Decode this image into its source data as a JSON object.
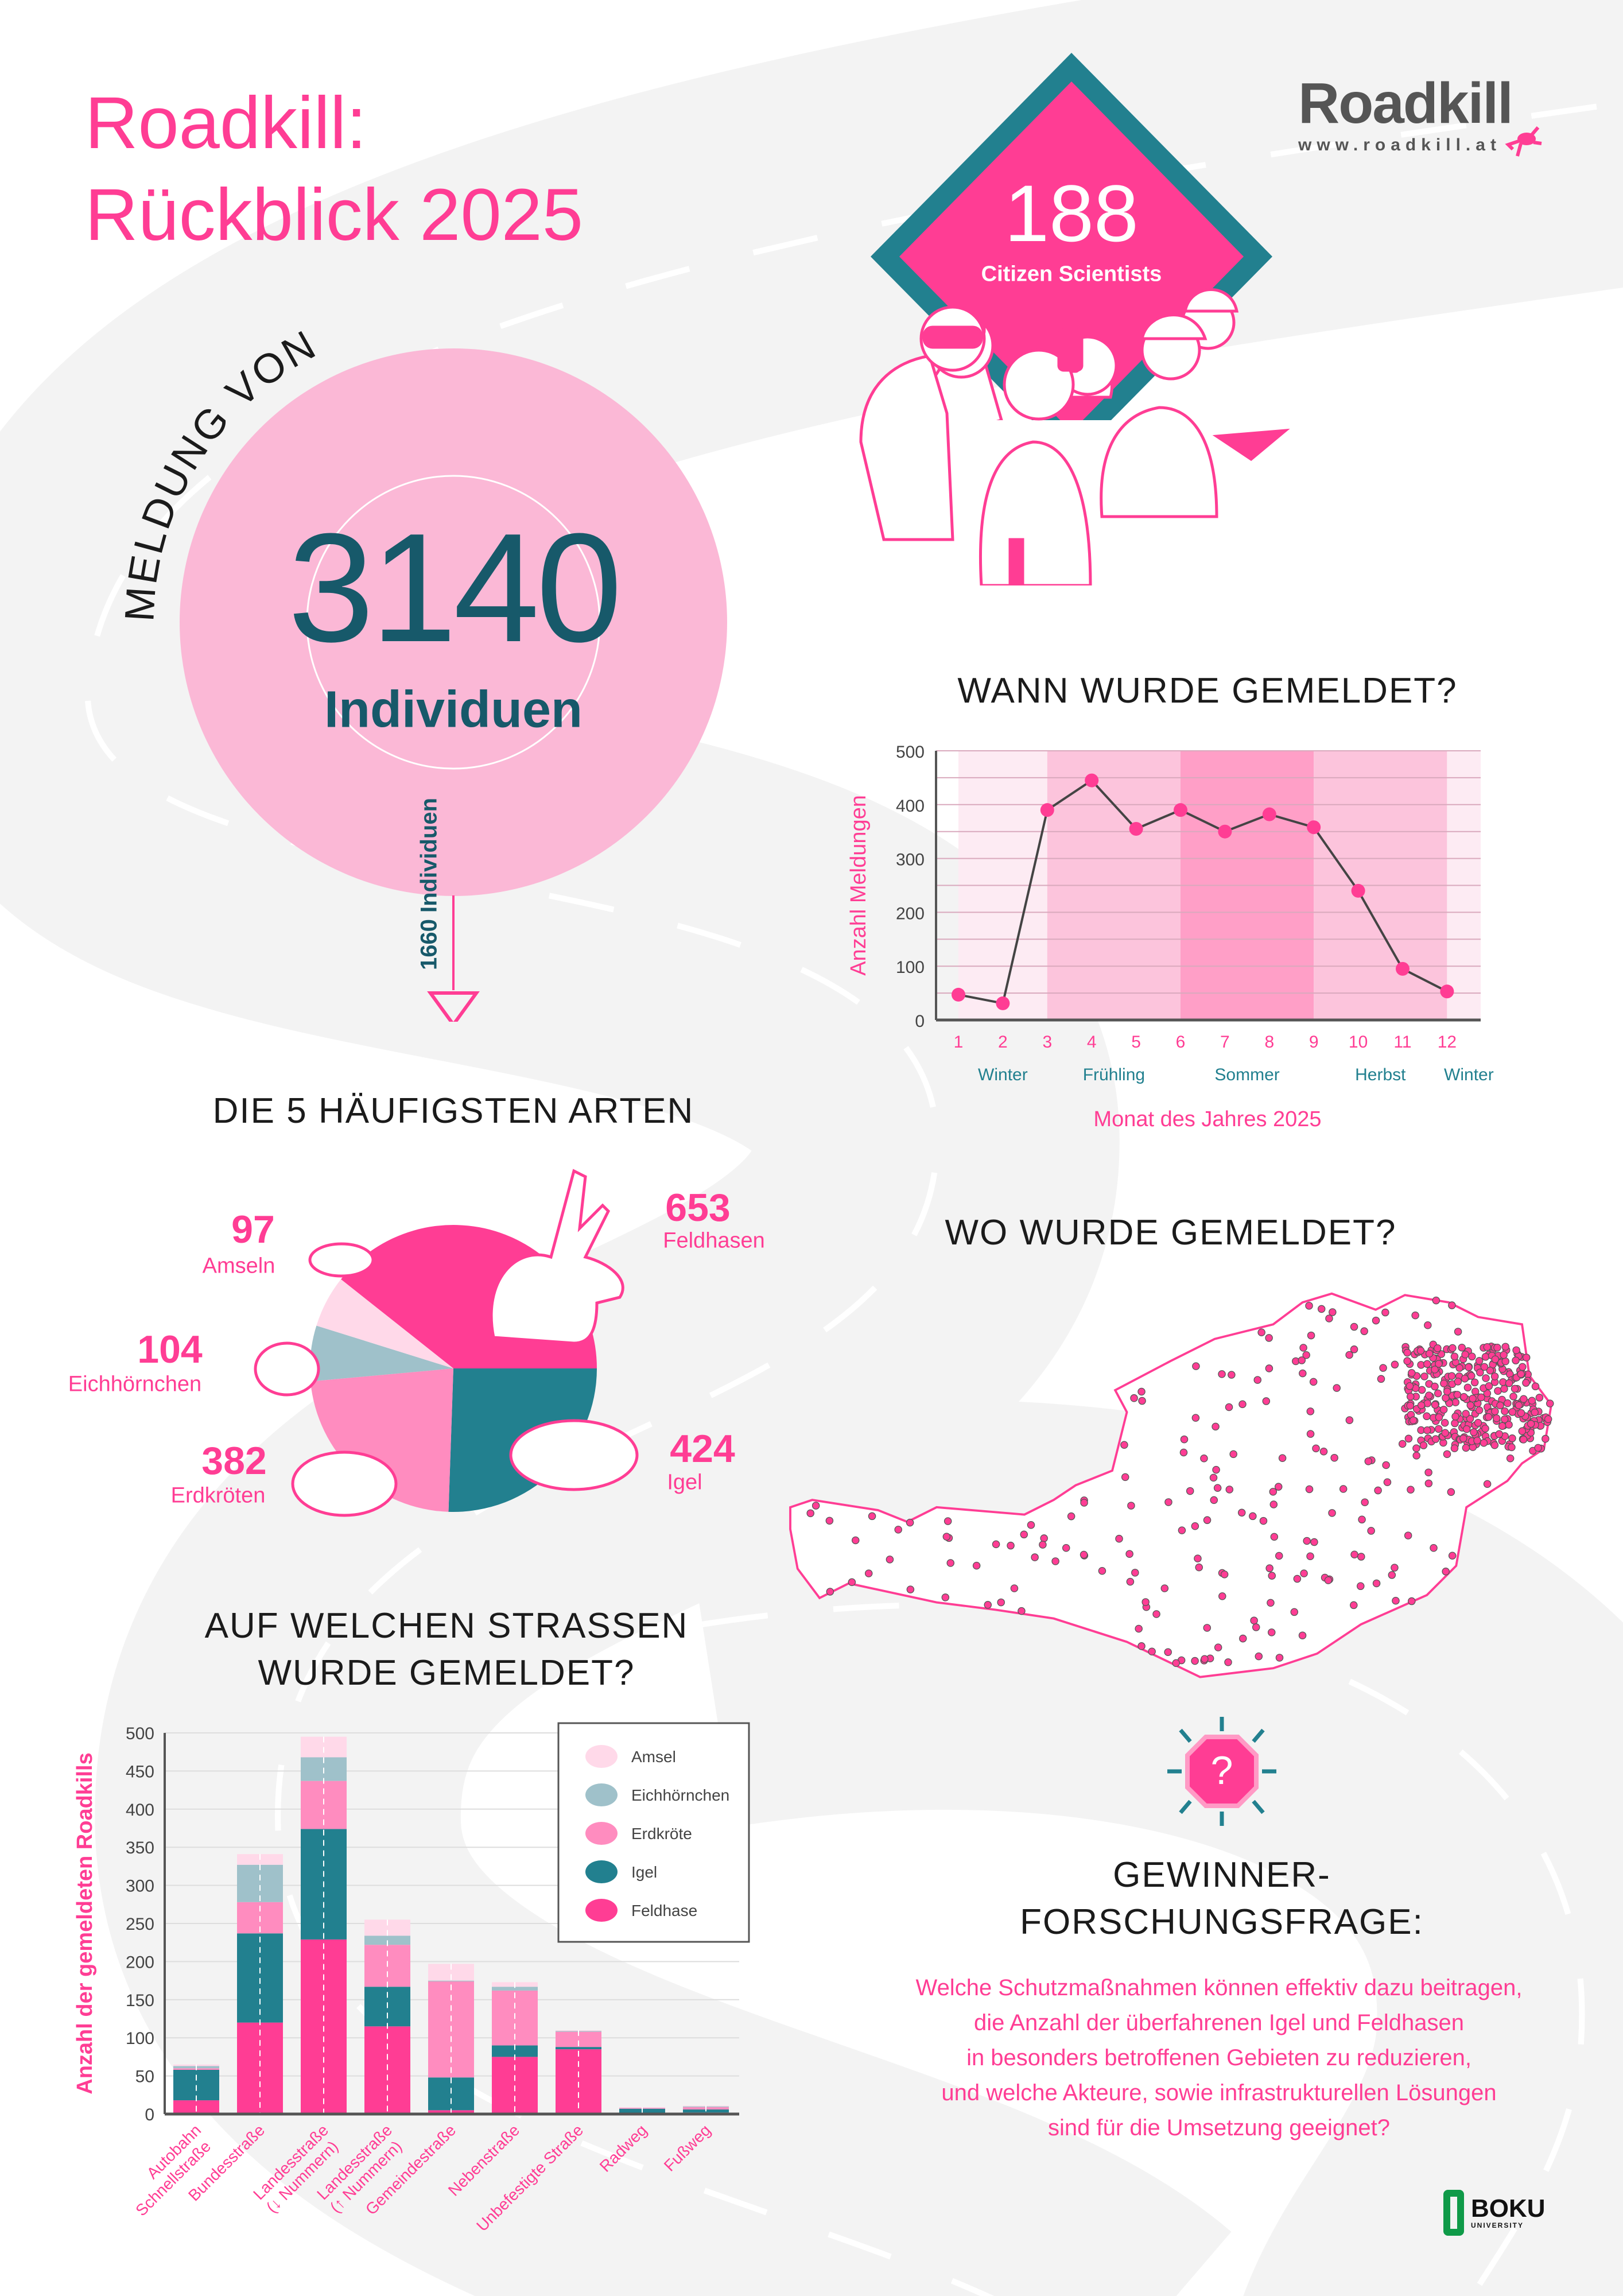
{
  "header": {
    "title_line1": "Roadkill:",
    "title_line2": "Rückblick 2025",
    "logo_text": "Roadkill",
    "logo_url": "www.roadkill.at"
  },
  "citizen": {
    "count": "188",
    "label": "Citizen Scientists"
  },
  "reports": {
    "arc_label": "MELDUNG VON",
    "count": "3140",
    "unit": "Individuen",
    "subset": "1660 Individuen"
  },
  "colors": {
    "pink": "#ff3d94",
    "light_pink": "#fbb8d6",
    "mid_pink": "#ff8cbf",
    "teal": "#22808f",
    "dark_teal": "#17596a",
    "grey_blue": "#9fc1ca",
    "pale_pink": "#ffd9e9"
  },
  "sections": {
    "when_title": "WANN WURDE GEMELDET?",
    "species_title": "DIE 5 HÄUFIGSTEN ARTEN",
    "where_title": "WO WURDE GEMELDET?",
    "roads_title_line1": "AUF WELCHEN STRASSEN",
    "roads_title_line2": "WURDE GEMELDET?"
  },
  "question": {
    "title_line1": "GEWINNER-",
    "title_line2": "FORSCHUNGSFRAGE:",
    "lines": [
      "Welche Schutzmaßnahmen können effektiv dazu beitragen,",
      "die Anzahl der überfahrenen Igel und Feldhasen",
      "in besonders betroffenen Gebieten zu reduzieren,",
      "und welche Akteure, sowie infrastrukturellen Lösungen",
      "sind für die Umsetzung geeignet?"
    ]
  },
  "footer": {
    "university_name": "BOKU",
    "university_sub": "UNIVERSITY"
  },
  "chart_data": [
    {
      "type": "line",
      "title": "WANN WURDE GEMELDET?",
      "xlabel": "Monat des Jahres 2025",
      "ylabel": "Anzahl Meldungen",
      "x": [
        1,
        2,
        3,
        4,
        5,
        6,
        7,
        8,
        9,
        10,
        11,
        12
      ],
      "values": [
        47,
        31,
        390,
        445,
        355,
        390,
        350,
        382,
        358,
        240,
        95,
        53
      ],
      "ylim": [
        0,
        500
      ],
      "yticks": [
        0,
        100,
        200,
        300,
        400,
        500
      ],
      "grid": true,
      "seasons": [
        {
          "label": "Winter",
          "from": 1,
          "to": 3
        },
        {
          "label": "Frühling",
          "from": 3,
          "to": 6
        },
        {
          "label": "Sommer",
          "from": 6,
          "to": 9
        },
        {
          "label": "Herbst",
          "from": 9,
          "to": 12
        },
        {
          "label": "Winter",
          "from": 12,
          "to": 13
        }
      ]
    },
    {
      "type": "pie",
      "title": "DIE 5 HÄUFIGSTEN ARTEN",
      "slices": [
        {
          "label": "Feldhasen",
          "value": 653,
          "color": "#ff3d94",
          "icon": "hare-icon"
        },
        {
          "label": "Igel",
          "value": 424,
          "color": "#22808f",
          "icon": "hedgehog-icon"
        },
        {
          "label": "Erdkröten",
          "value": 382,
          "color": "#ff8cbf",
          "icon": "toad-icon"
        },
        {
          "label": "Eichhörnchen",
          "value": 104,
          "color": "#9fc1ca",
          "icon": "squirrel-icon"
        },
        {
          "label": "Amseln",
          "value": 97,
          "color": "#ffd9e9",
          "icon": "blackbird-icon"
        }
      ]
    },
    {
      "type": "bar",
      "stacked": true,
      "title": "AUF WELCHEN STRASSEN WURDE GEMELDET?",
      "ylabel": "Anzahl der gemeldeten Roadkills",
      "ylim": [
        0,
        500
      ],
      "yticks": [
        0,
        50,
        100,
        150,
        200,
        250,
        300,
        350,
        400,
        450,
        500
      ],
      "grid": true,
      "legend_position": "top-right",
      "categories": [
        "Autobahn Schnellstraße",
        "Bundesstraße",
        "Landesstraße (↓ Nummern)",
        "Landesstraße (↑ Nummern)",
        "Gemeindestraße",
        "Nebenstraße",
        "Unbefestigte Straße",
        "Radweg",
        "Fußweg"
      ],
      "category_lines": [
        [
          "Autobahn",
          "Schnellstraße"
        ],
        [
          "Bundesstraße"
        ],
        [
          "Landesstraße",
          "(↓ Nummern)"
        ],
        [
          "Landesstraße",
          "(↑ Nummern)"
        ],
        [
          "Gemeindestraße"
        ],
        [
          "Nebenstraße"
        ],
        [
          "Unbefestigte Straße"
        ],
        [
          "Radweg"
        ],
        [
          "Fußweg"
        ]
      ],
      "series": [
        {
          "name": "Feldhase",
          "color": "#ff3d94",
          "values": [
            18,
            120,
            229,
            115,
            5,
            75,
            85,
            1,
            2
          ]
        },
        {
          "name": "Igel",
          "color": "#22808f",
          "values": [
            40,
            117,
            145,
            52,
            43,
            15,
            3,
            6,
            4
          ]
        },
        {
          "name": "Erdkröte",
          "color": "#ff8cbf",
          "values": [
            2,
            41,
            63,
            55,
            126,
            72,
            20,
            1,
            3
          ]
        },
        {
          "name": "Eichhörnchen",
          "color": "#9fc1ca",
          "values": [
            3,
            49,
            31,
            12,
            1,
            5,
            1,
            0,
            1
          ]
        },
        {
          "name": "Amsel",
          "color": "#ffd9e9",
          "values": [
            2,
            14,
            27,
            21,
            22,
            6,
            1,
            1,
            1
          ]
        }
      ],
      "legend_order": [
        "Amsel",
        "Eichhörnchen",
        "Erdkröte",
        "Igel",
        "Feldhase"
      ]
    }
  ]
}
